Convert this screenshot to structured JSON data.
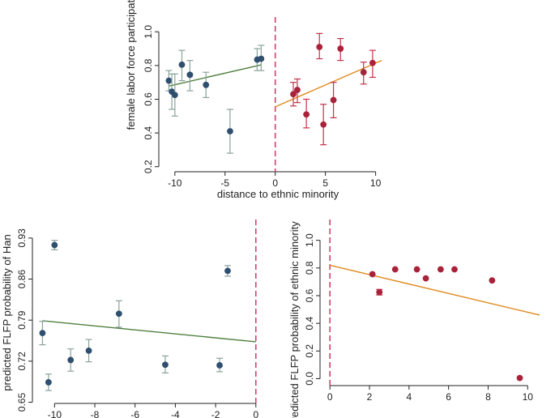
{
  "colors": {
    "han_point": "#2f4f6f",
    "han_line": "#4f7f3f",
    "han_ci": "#8aa39a",
    "min_point": "#a8223a",
    "min_line": "#e08a1e",
    "min_ci": "#c4314b",
    "vline": "#d6406a",
    "axis": "#222222"
  },
  "chart_data": [
    {
      "id": "top",
      "type": "scatter",
      "title": "",
      "xlabel": "distance to ethnic minority",
      "ylabel": "female labor force participation probability",
      "xlim": [
        -11.6,
        11.0
      ],
      "ylim": [
        0.17,
        1.03
      ],
      "xticks": [
        -10,
        -5,
        0,
        5,
        10
      ],
      "xtick_labels": [
        "-10",
        "-5",
        "0",
        "5",
        "10"
      ],
      "yticks": [
        0.2,
        0.4,
        0.6,
        0.8,
        1.0
      ],
      "ytick_labels": [
        "0.2",
        "0.4",
        "0.6",
        "0.8",
        "1.0"
      ],
      "cutoff": 0,
      "series": [
        {
          "name": "Han",
          "points": [
            {
              "x": -10.6,
              "y": 0.71,
              "lo": 0.65,
              "hi": 0.77
            },
            {
              "x": -10.3,
              "y": 0.645,
              "lo": 0.54,
              "hi": 0.75
            },
            {
              "x": -10.0,
              "y": 0.625,
              "lo": 0.5,
              "hi": 0.75
            },
            {
              "x": -9.3,
              "y": 0.805,
              "lo": 0.71,
              "hi": 0.89
            },
            {
              "x": -8.5,
              "y": 0.745,
              "lo": 0.65,
              "hi": 0.83
            },
            {
              "x": -6.9,
              "y": 0.685,
              "lo": 0.61,
              "hi": 0.76
            },
            {
              "x": -4.5,
              "y": 0.41,
              "lo": 0.28,
              "hi": 0.54
            },
            {
              "x": -1.8,
              "y": 0.835,
              "lo": 0.77,
              "hi": 0.9
            },
            {
              "x": -1.4,
              "y": 0.84,
              "lo": 0.77,
              "hi": 0.92
            }
          ],
          "fit": [
            [
              -10.6,
              0.678
            ],
            [
              -1.4,
              0.804
            ]
          ]
        },
        {
          "name": "Ethnic minority",
          "points": [
            {
              "x": 1.8,
              "y": 0.63,
              "lo": 0.56,
              "hi": 0.7
            },
            {
              "x": 2.2,
              "y": 0.655,
              "lo": 0.58,
              "hi": 0.72
            },
            {
              "x": 3.1,
              "y": 0.51,
              "lo": 0.43,
              "hi": 0.6
            },
            {
              "x": 4.4,
              "y": 0.91,
              "lo": 0.84,
              "hi": 0.99
            },
            {
              "x": 4.8,
              "y": 0.45,
              "lo": 0.33,
              "hi": 0.57
            },
            {
              "x": 5.8,
              "y": 0.595,
              "lo": 0.49,
              "hi": 0.7
            },
            {
              "x": 6.5,
              "y": 0.9,
              "lo": 0.83,
              "hi": 0.96
            },
            {
              "x": 8.8,
              "y": 0.76,
              "lo": 0.69,
              "hi": 0.82
            },
            {
              "x": 9.7,
              "y": 0.815,
              "lo": 0.73,
              "hi": 0.89
            }
          ],
          "fit": [
            [
              0,
              0.555
            ],
            [
              10.6,
              0.83
            ]
          ]
        }
      ]
    },
    {
      "id": "bottom-left",
      "type": "scatter",
      "title": "",
      "xlabel": "",
      "ylabel": "predicted FLFP probability of Han",
      "xlim": [
        -11.1,
        0.25
      ],
      "ylim": [
        0.648,
        0.945
      ],
      "xticks": [
        -10,
        -8,
        -6,
        -4,
        -2,
        0
      ],
      "xtick_labels": [
        "-10",
        "-8",
        "-6",
        "-4",
        "-2",
        "0"
      ],
      "yticks": [
        0.65,
        0.72,
        0.79,
        0.86,
        0.93
      ],
      "ytick_labels": [
        "0.65",
        "0.72",
        "0.79",
        "0.86",
        "0.93"
      ],
      "cutoff": 0,
      "series": [
        {
          "name": "Han",
          "points": [
            {
              "x": -10.6,
              "y": 0.768,
              "lo": 0.748,
              "hi": 0.788
            },
            {
              "x": -10.3,
              "y": 0.684,
              "lo": 0.67,
              "hi": 0.698
            },
            {
              "x": -10.0,
              "y": 0.918,
              "lo": 0.91,
              "hi": 0.926
            },
            {
              "x": -9.2,
              "y": 0.722,
              "lo": 0.703,
              "hi": 0.741
            },
            {
              "x": -8.3,
              "y": 0.738,
              "lo": 0.719,
              "hi": 0.757
            },
            {
              "x": -6.8,
              "y": 0.801,
              "lo": 0.778,
              "hi": 0.823
            },
            {
              "x": -4.5,
              "y": 0.714,
              "lo": 0.7,
              "hi": 0.729
            },
            {
              "x": -1.8,
              "y": 0.713,
              "lo": 0.702,
              "hi": 0.725
            },
            {
              "x": -1.4,
              "y": 0.874,
              "lo": 0.865,
              "hi": 0.883
            }
          ],
          "fit": [
            [
              -10.6,
              0.789
            ],
            [
              0,
              0.753
            ]
          ]
        }
      ]
    },
    {
      "id": "bottom-right",
      "type": "scatter",
      "title": "",
      "xlabel": "",
      "ylabel": "predicted FLFP probability of ethnic minority",
      "xlim": [
        -0.5,
        11.3
      ],
      "ylim": [
        -0.05,
        1.08
      ],
      "xticks": [
        0,
        2,
        4,
        6,
        8,
        10
      ],
      "xtick_labels": [
        "0",
        "2",
        "4",
        "6",
        "8",
        "10"
      ],
      "yticks": [
        0.0,
        0.2,
        0.4,
        0.6,
        0.8,
        1.0
      ],
      "ytick_labels": [
        "0.0",
        "0.2",
        "0.4",
        "0.6",
        "0.8",
        "1.0"
      ],
      "cutoff": 0,
      "series": [
        {
          "name": "Ethnic minority",
          "points": [
            {
              "x": 2.15,
              "y": 0.755
            },
            {
              "x": 2.5,
              "y": 0.625,
              "lo": 0.605,
              "hi": 0.645
            },
            {
              "x": 3.3,
              "y": 0.79
            },
            {
              "x": 4.4,
              "y": 0.79
            },
            {
              "x": 4.85,
              "y": 0.725
            },
            {
              "x": 5.6,
              "y": 0.79
            },
            {
              "x": 6.3,
              "y": 0.79
            },
            {
              "x": 8.2,
              "y": 0.71
            },
            {
              "x": 9.6,
              "y": 0.005
            }
          ],
          "fit": [
            [
              0,
              0.82
            ],
            [
              10.6,
              0.46
            ]
          ]
        }
      ]
    }
  ]
}
